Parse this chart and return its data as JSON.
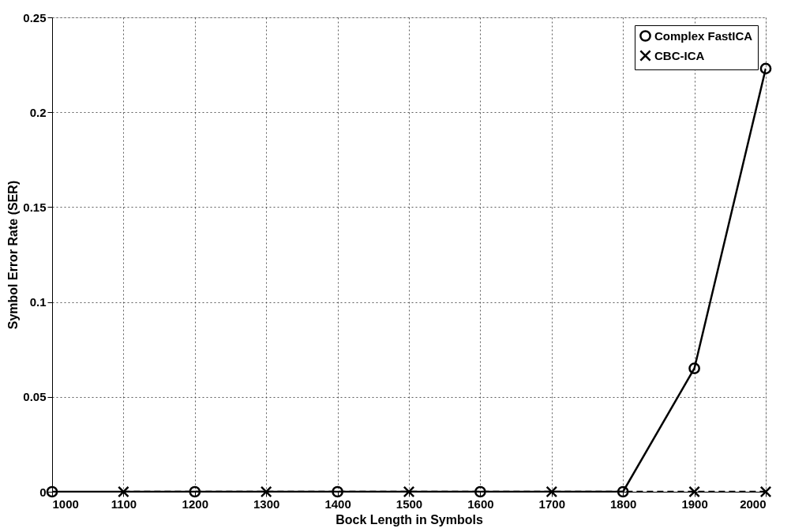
{
  "chart_data": {
    "type": "line",
    "xlabel": "Bock Length in Symbols",
    "ylabel": "Symbol Error Rate (SER)",
    "xlim": [
      1000,
      2000
    ],
    "xticks": [
      1000,
      1100,
      1200,
      1300,
      1400,
      1500,
      1600,
      1700,
      1800,
      1900,
      2000
    ],
    "ylim": [
      0,
      0.25
    ],
    "yticks": [
      0,
      0.05,
      0.1,
      0.15,
      0.2,
      0.25
    ],
    "grid": true,
    "legend": "top right",
    "series": [
      {
        "name": "Complex FastICA",
        "color": "#000000",
        "marker": "circle",
        "line_style": "solid",
        "x": [
          1000,
          1200,
          1400,
          1600,
          1800,
          1900,
          2000
        ],
        "values": [
          0,
          0,
          0,
          0,
          0,
          0.065,
          0.223
        ]
      },
      {
        "name": "CBC-ICA",
        "color": "#000000",
        "marker": "cross",
        "line_style": "dashed",
        "x": [
          1100,
          1300,
          1500,
          1700,
          1900,
          2000
        ],
        "values": [
          0,
          0,
          0,
          0,
          0,
          0
        ]
      }
    ]
  }
}
